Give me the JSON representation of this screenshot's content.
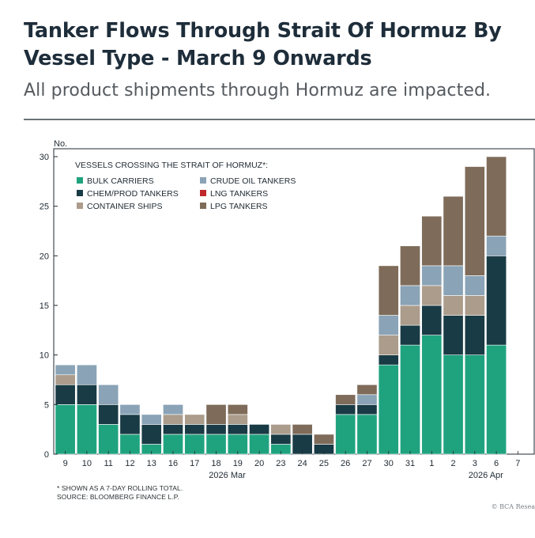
{
  "header": {
    "title": "Tanker Flows Through Strait Of Hormuz By Vessel Type - March 9 Onwards",
    "subtitle": "All product shipments through Hormuz are impacted."
  },
  "footer": {
    "note1": "* SHOWN AS A 7-DAY ROLLING TOTAL.",
    "note2": "SOURCE: BLOOMBERG FINANCE L.P.",
    "copyright": "© BCA Resea"
  },
  "chart_data": {
    "type": "bar",
    "stacked": true,
    "ylabel": "No.",
    "ylim": [
      0,
      30
    ],
    "yticks": [
      0,
      5,
      10,
      15,
      20,
      25,
      30
    ],
    "legend_title": "VESSELS CROSSING THE STRAIT OF HORMUZ*:",
    "legend_order": [
      "BULK CARRIERS",
      "CRUDE OIL TANKERS",
      "CHEM/PROD TANKERS",
      "LNG TANKERS",
      "CONTAINER SHIPS",
      "LPG TANKERS"
    ],
    "categories": [
      "9",
      "10",
      "11",
      "12",
      "13",
      "16",
      "17",
      "18",
      "19",
      "20",
      "23",
      "24",
      "25",
      "26",
      "27",
      "30",
      "31",
      "1",
      "2",
      "3",
      "6",
      "7"
    ],
    "month_labels": [
      {
        "label": "2026 Mar",
        "at": "18"
      },
      {
        "label": "2026 Apr",
        "at": "3"
      }
    ],
    "series": [
      {
        "name": "BULK CARRIERS",
        "color": "#1fa37f",
        "values": [
          5,
          5,
          3,
          2,
          1,
          2,
          2,
          2,
          2,
          2,
          1,
          0,
          0,
          4,
          4,
          9,
          11,
          12,
          10,
          10,
          11,
          0
        ]
      },
      {
        "name": "CHEM/PROD TANKERS",
        "color": "#193b45",
        "values": [
          2,
          2,
          2,
          2,
          2,
          1,
          1,
          1,
          1,
          1,
          1,
          2,
          1,
          1,
          1,
          1,
          2,
          3,
          4,
          4,
          9,
          0
        ]
      },
      {
        "name": "CONTAINER SHIPS",
        "color": "#ab9c8b",
        "values": [
          1,
          0,
          0,
          0,
          0,
          1,
          1,
          0,
          1,
          0,
          1,
          0,
          0,
          0,
          0,
          2,
          2,
          2,
          2,
          2,
          0,
          0
        ]
      },
      {
        "name": "CRUDE OIL TANKERS",
        "color": "#8aa3b6",
        "values": [
          1,
          2,
          2,
          1,
          1,
          1,
          0,
          0,
          0,
          0,
          0,
          0,
          0,
          0,
          1,
          2,
          2,
          2,
          3,
          2,
          2,
          0
        ]
      },
      {
        "name": "LPG TANKERS",
        "color": "#7e6b59",
        "values": [
          0,
          0,
          0,
          0,
          0,
          0,
          0,
          2,
          1,
          0,
          0,
          1,
          1,
          1,
          1,
          5,
          4,
          5,
          7,
          11,
          8,
          0
        ]
      },
      {
        "name": "LNG TANKERS",
        "color": "#c0282c",
        "values": [
          0,
          0,
          0,
          0,
          0,
          0,
          0,
          0,
          0,
          0,
          0,
          0,
          0,
          0,
          0,
          0,
          0,
          0,
          0,
          0,
          0,
          0
        ]
      }
    ]
  }
}
